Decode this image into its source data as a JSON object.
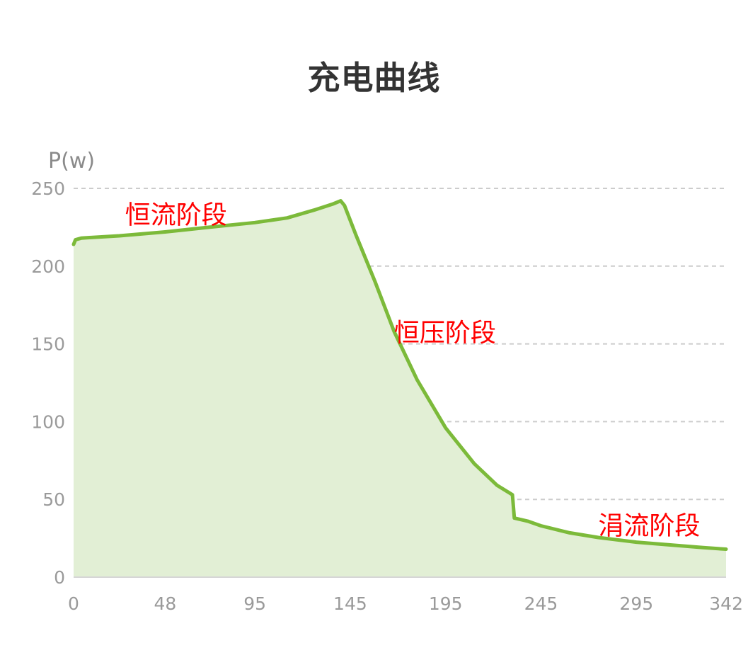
{
  "chart_data": {
    "type": "area",
    "title": "充电曲线",
    "ylabel": "P(w)",
    "xlabel": "",
    "x_ticks": [
      0,
      48,
      95,
      145,
      195,
      245,
      295,
      342
    ],
    "y_ticks": [
      0,
      50,
      100,
      150,
      200,
      250
    ],
    "xlim": [
      0,
      342
    ],
    "ylim": [
      0,
      250
    ],
    "grid": "horizontal dashed",
    "series": [
      {
        "values": [
          [
            0,
            214
          ],
          [
            1,
            217
          ],
          [
            4,
            218
          ],
          [
            10,
            218.5
          ],
          [
            24,
            219.5
          ],
          [
            48,
            222
          ],
          [
            71,
            225
          ],
          [
            95,
            228
          ],
          [
            112,
            231
          ],
          [
            126,
            236
          ],
          [
            136,
            240
          ],
          [
            140,
            242
          ],
          [
            142,
            239
          ],
          [
            148,
            220
          ],
          [
            158,
            190
          ],
          [
            168,
            158
          ],
          [
            180,
            127
          ],
          [
            195,
            96
          ],
          [
            210,
            73
          ],
          [
            222,
            59
          ],
          [
            230,
            53
          ],
          [
            231,
            38
          ],
          [
            238,
            36
          ],
          [
            245,
            33
          ],
          [
            260,
            28.5
          ],
          [
            275,
            25.5
          ],
          [
            295,
            22.5
          ],
          [
            315,
            20.5
          ],
          [
            330,
            19
          ],
          [
            342,
            18
          ]
        ]
      }
    ],
    "annotations": [
      {
        "text": "恒流阶段",
        "x": 27,
        "y": 233
      },
      {
        "text": "恒压阶段",
        "x": 168,
        "y": 157
      },
      {
        "text": "涓流阶段",
        "x": 275,
        "y": 33
      }
    ],
    "colors": {
      "line": "#7cba3a",
      "fill": "#e2efd5",
      "grid": "#cccccc",
      "annotation": "#ff0000"
    }
  }
}
